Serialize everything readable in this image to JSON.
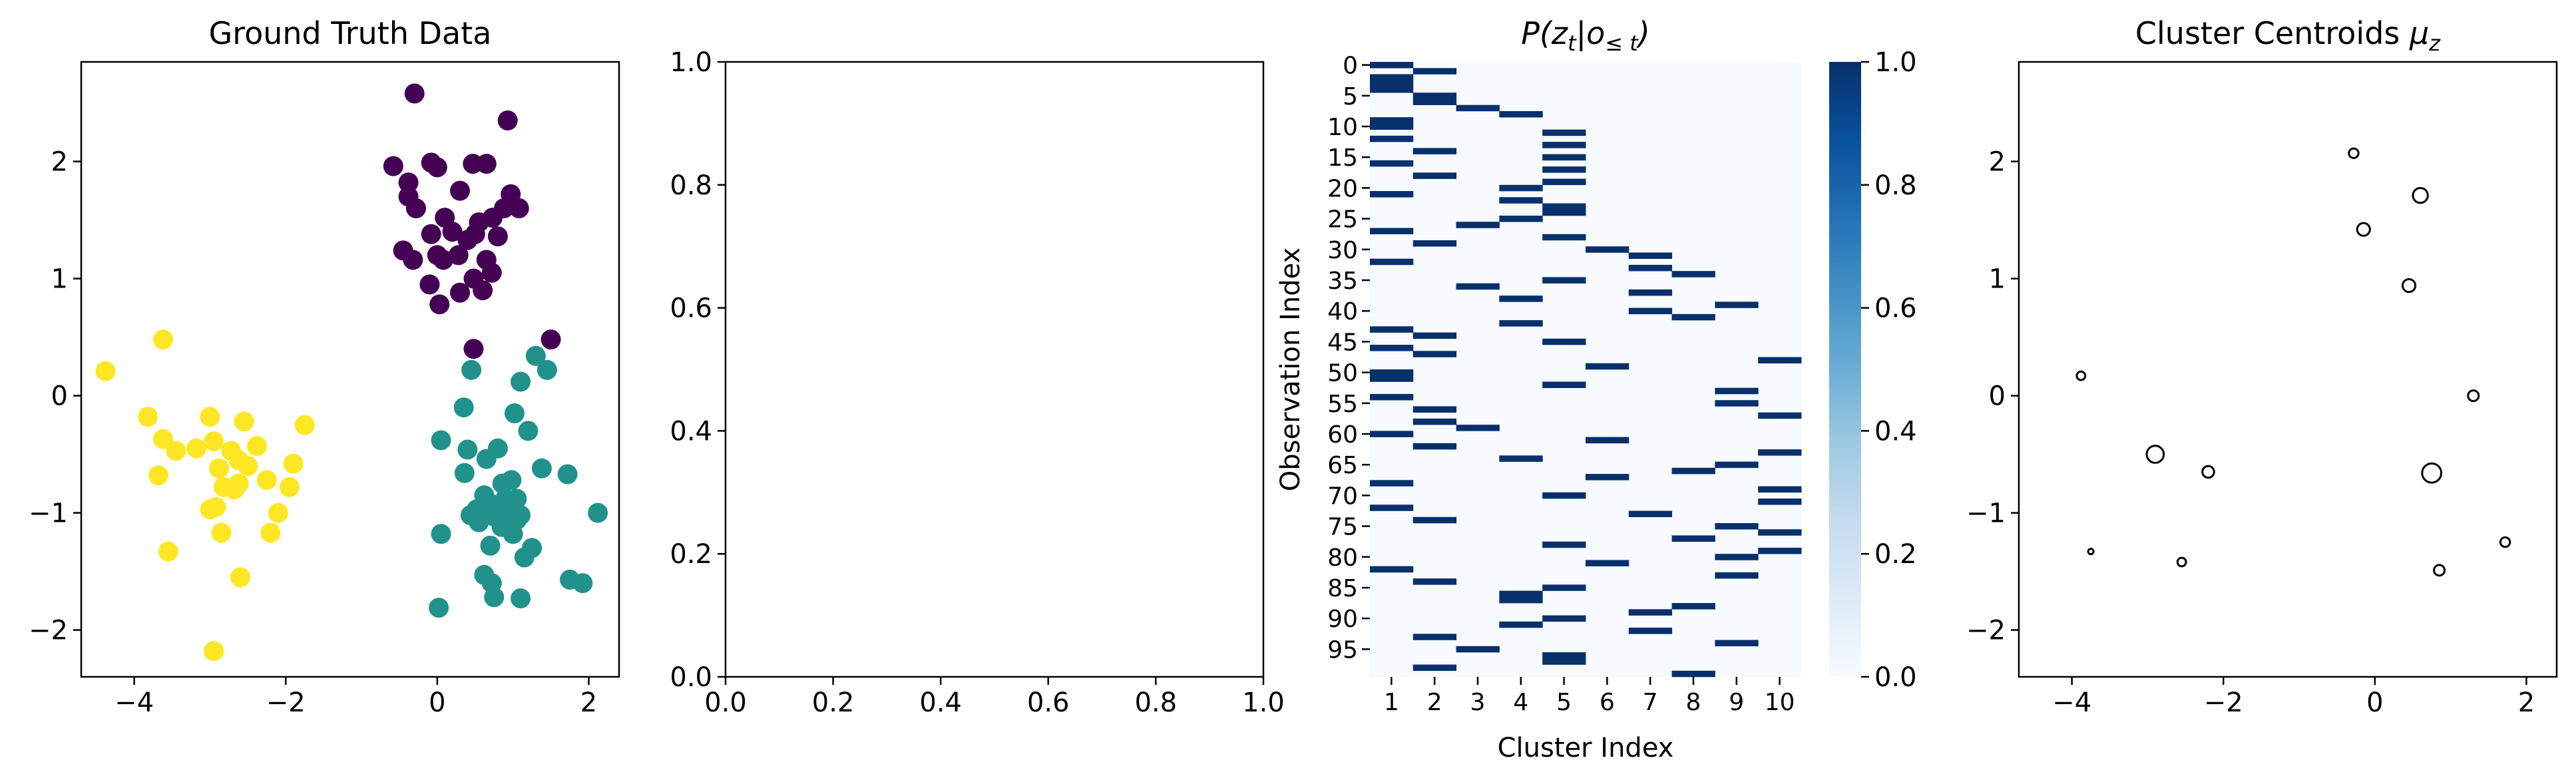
{
  "charts": {
    "scatter": {
      "type": "scatter",
      "title": "Ground Truth Data",
      "xlim": [
        -4.7,
        2.4
      ],
      "ylim": [
        -2.4,
        2.85
      ],
      "xticks": [
        -4,
        -2,
        0,
        2
      ],
      "yticks": [
        -2,
        -1,
        0,
        1,
        2
      ],
      "colors": [
        "#440154",
        "#21918c",
        "#fde725"
      ],
      "series": [
        {
          "points": [
            [
              -0.3,
              2.58
            ],
            [
              0.93,
              2.35
            ],
            [
              -0.58,
              1.96
            ],
            [
              -0.08,
              1.99
            ],
            [
              0.0,
              1.95
            ],
            [
              0.47,
              1.98
            ],
            [
              0.65,
              1.98
            ],
            [
              -0.38,
              1.82
            ],
            [
              -0.38,
              1.7
            ],
            [
              -0.28,
              1.6
            ],
            [
              0.3,
              1.75
            ],
            [
              0.97,
              1.72
            ],
            [
              1.08,
              1.6
            ],
            [
              0.88,
              1.6
            ],
            [
              0.1,
              1.52
            ],
            [
              0.55,
              1.48
            ],
            [
              0.73,
              1.52
            ],
            [
              0.5,
              1.38
            ],
            [
              0.2,
              1.4
            ],
            [
              -0.08,
              1.38
            ],
            [
              0.0,
              1.2
            ],
            [
              0.4,
              1.33
            ],
            [
              0.8,
              1.36
            ],
            [
              -0.45,
              1.24
            ],
            [
              -0.32,
              1.16
            ],
            [
              0.08,
              1.16
            ],
            [
              0.65,
              1.16
            ],
            [
              0.28,
              1.2
            ],
            [
              0.48,
              1.0
            ],
            [
              0.72,
              1.05
            ],
            [
              0.3,
              0.88
            ],
            [
              0.6,
              0.9
            ],
            [
              0.03,
              0.78
            ],
            [
              -0.1,
              0.95
            ],
            [
              0.48,
              0.4
            ],
            [
              1.5,
              0.48
            ]
          ]
        },
        {
          "points": [
            [
              1.3,
              0.34
            ],
            [
              1.45,
              0.22
            ],
            [
              0.45,
              0.22
            ],
            [
              1.1,
              0.12
            ],
            [
              0.35,
              -0.1
            ],
            [
              1.02,
              -0.15
            ],
            [
              1.2,
              -0.3
            ],
            [
              0.05,
              -0.38
            ],
            [
              0.4,
              -0.46
            ],
            [
              0.8,
              -0.45
            ],
            [
              0.65,
              -0.54
            ],
            [
              1.72,
              -0.67
            ],
            [
              1.38,
              -0.62
            ],
            [
              0.36,
              -0.66
            ],
            [
              0.98,
              -0.72
            ],
            [
              0.86,
              -0.75
            ],
            [
              0.62,
              -0.85
            ],
            [
              0.9,
              -0.88
            ],
            [
              0.7,
              -0.92
            ],
            [
              1.05,
              -0.88
            ],
            [
              0.52,
              -0.97
            ],
            [
              0.82,
              -0.98
            ],
            [
              0.95,
              -1.0
            ],
            [
              0.44,
              -1.02
            ],
            [
              0.75,
              -1.03
            ],
            [
              1.1,
              -1.02
            ],
            [
              1.05,
              -1.06
            ],
            [
              2.12,
              -1.0
            ],
            [
              0.55,
              -1.08
            ],
            [
              0.85,
              -1.12
            ],
            [
              0.05,
              -1.18
            ],
            [
              1.0,
              -1.18
            ],
            [
              0.7,
              -1.28
            ],
            [
              1.25,
              -1.3
            ],
            [
              1.15,
              -1.38
            ],
            [
              0.62,
              -1.53
            ],
            [
              0.72,
              -1.6
            ],
            [
              1.75,
              -1.57
            ],
            [
              1.92,
              -1.6
            ],
            [
              0.75,
              -1.72
            ],
            [
              1.1,
              -1.73
            ],
            [
              0.02,
              -1.81
            ]
          ]
        },
        {
          "points": [
            [
              -3.62,
              0.48
            ],
            [
              -4.38,
              0.21
            ],
            [
              -3.82,
              -0.18
            ],
            [
              -3.0,
              -0.18
            ],
            [
              -2.55,
              -0.22
            ],
            [
              -1.75,
              -0.25
            ],
            [
              -3.62,
              -0.37
            ],
            [
              -2.95,
              -0.39
            ],
            [
              -2.38,
              -0.43
            ],
            [
              -3.45,
              -0.47
            ],
            [
              -3.18,
              -0.45
            ],
            [
              -2.72,
              -0.47
            ],
            [
              -2.62,
              -0.55
            ],
            [
              -2.88,
              -0.62
            ],
            [
              -2.5,
              -0.6
            ],
            [
              -1.9,
              -0.58
            ],
            [
              -3.68,
              -0.68
            ],
            [
              -2.62,
              -0.75
            ],
            [
              -2.25,
              -0.72
            ],
            [
              -2.82,
              -0.78
            ],
            [
              -2.68,
              -0.8
            ],
            [
              -1.95,
              -0.78
            ],
            [
              -3.0,
              -0.97
            ],
            [
              -2.92,
              -0.95
            ],
            [
              -2.1,
              -1.0
            ],
            [
              -3.55,
              -1.33
            ],
            [
              -2.85,
              -1.17
            ],
            [
              -2.2,
              -1.17
            ],
            [
              -2.6,
              -1.55
            ],
            [
              -2.95,
              -2.18
            ]
          ]
        }
      ]
    },
    "empty": {
      "type": "scatter",
      "xlim": [
        0,
        1
      ],
      "ylim": [
        0,
        1
      ],
      "xticks": [
        "0.0",
        "0.2",
        "0.4",
        "0.6",
        "0.8",
        "1.0"
      ],
      "yticks": [
        "0.0",
        "0.2",
        "0.4",
        "0.6",
        "0.8",
        "1.0"
      ]
    },
    "heatmap": {
      "type": "heatmap",
      "title_parts": {
        "p": "P(z",
        "sub1": "t",
        "mid": "|o",
        "sub2": "≤ t",
        "end": ")"
      },
      "xlabel": "Cluster Index",
      "ylabel": "Observation Index",
      "n_rows": 100,
      "columns": [
        "1",
        "2",
        "3",
        "4",
        "5",
        "6",
        "7",
        "8",
        "9",
        "10"
      ],
      "yticks": [
        "0",
        "5",
        "10",
        "15",
        "20",
        "25",
        "30",
        "35",
        "40",
        "45",
        "50",
        "55",
        "60",
        "65",
        "70",
        "75",
        "80",
        "85",
        "90",
        "95"
      ],
      "colorbar_ticks": [
        "0.0",
        "0.2",
        "0.4",
        "0.6",
        "0.8",
        "1.0"
      ],
      "colormap": [
        "#f7fbff",
        "#deebf7",
        "#c6dbef",
        "#9ecae1",
        "#6baed6",
        "#4292c6",
        "#2171b5",
        "#08519c",
        "#08306b"
      ],
      "assignments": [
        1,
        2,
        1,
        1,
        1,
        2,
        2,
        3,
        4,
        1,
        1,
        5,
        1,
        5,
        2,
        5,
        1,
        5,
        2,
        5,
        4,
        1,
        4,
        5,
        5,
        4,
        3,
        1,
        5,
        2,
        6,
        7,
        1,
        7,
        8,
        5,
        3,
        7,
        4,
        9,
        7,
        8,
        4,
        1,
        2,
        5,
        1,
        2,
        10,
        6,
        1,
        1,
        5,
        9,
        1,
        9,
        2,
        10,
        2,
        3,
        1,
        6,
        2,
        10,
        4,
        9,
        8,
        6,
        1,
        10,
        5,
        10,
        1,
        7,
        2,
        9,
        10,
        8,
        5,
        10,
        9,
        6,
        1,
        9,
        2,
        5,
        4,
        4,
        8,
        7,
        5,
        4,
        7,
        2,
        9,
        3,
        5,
        5,
        2,
        8
      ]
    },
    "centroids": {
      "type": "scatter",
      "title_text": "Cluster Centroids ",
      "title_math": "μ",
      "title_sub": "z",
      "xlim": [
        -4.7,
        2.4
      ],
      "ylim": [
        -2.4,
        2.85
      ],
      "xticks": [
        -4,
        -2,
        0,
        2
      ],
      "yticks": [
        -2,
        -1,
        0,
        1,
        2
      ],
      "points": [
        {
          "x": -0.28,
          "y": 2.07,
          "size": 4.5
        },
        {
          "x": 0.6,
          "y": 1.71,
          "size": 7
        },
        {
          "x": -0.15,
          "y": 1.42,
          "size": 6
        },
        {
          "x": 0.45,
          "y": 0.94,
          "size": 6
        },
        {
          "x": -3.88,
          "y": 0.17,
          "size": 4
        },
        {
          "x": 1.3,
          "y": 0.0,
          "size": 5
        },
        {
          "x": -2.9,
          "y": -0.5,
          "size": 8
        },
        {
          "x": -2.2,
          "y": -0.65,
          "size": 5.5
        },
        {
          "x": 0.75,
          "y": -0.66,
          "size": 9
        },
        {
          "x": 1.72,
          "y": -1.25,
          "size": 4.5
        },
        {
          "x": -3.75,
          "y": -1.33,
          "size": 2.5
        },
        {
          "x": -2.55,
          "y": -1.42,
          "size": 4
        },
        {
          "x": 0.85,
          "y": -1.49,
          "size": 5
        }
      ]
    }
  }
}
